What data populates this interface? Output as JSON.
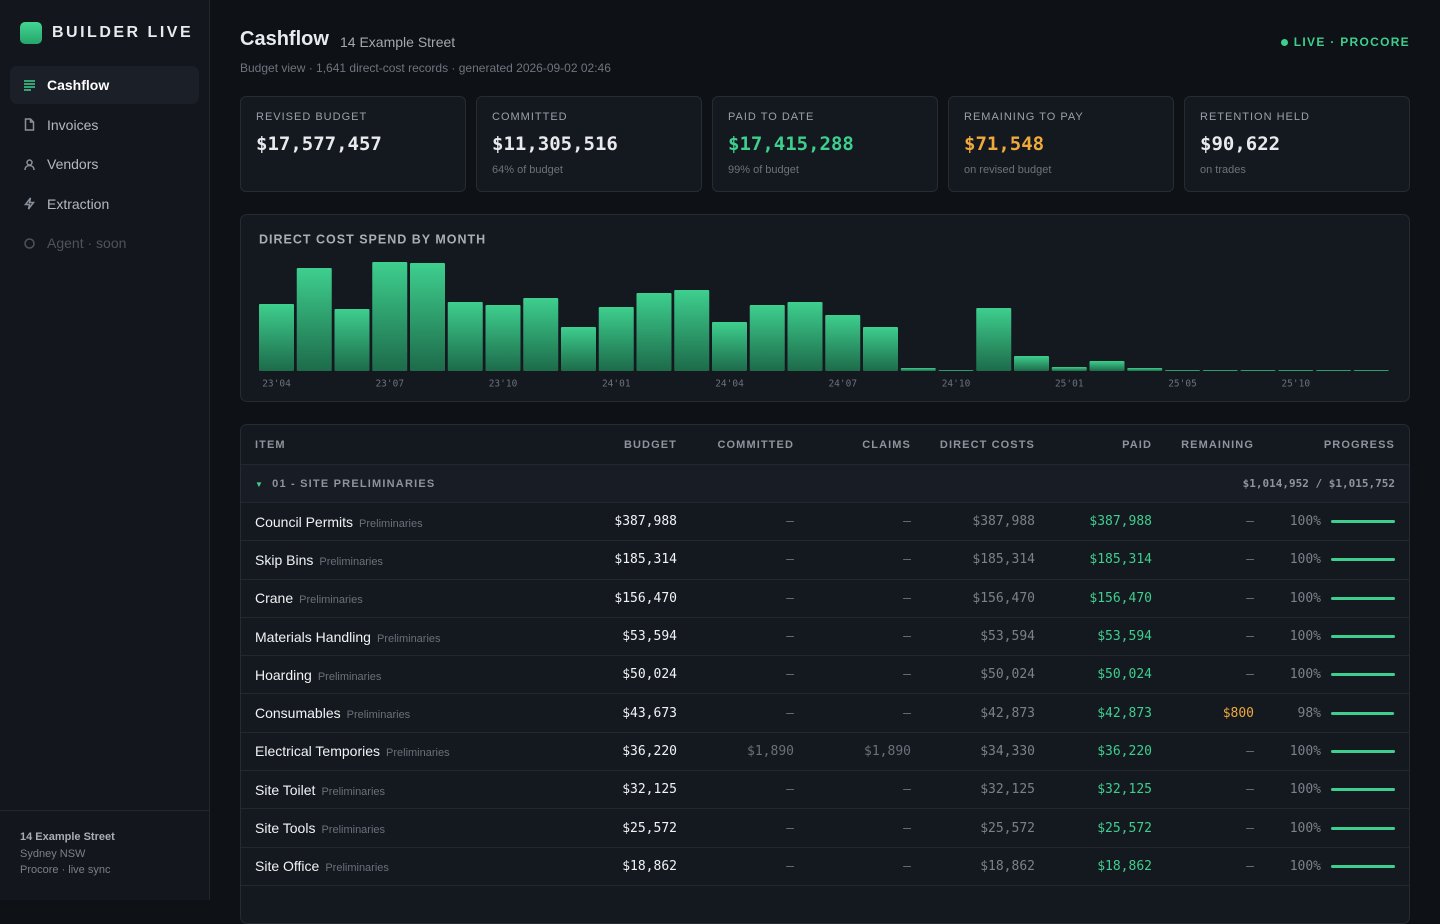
{
  "sidebar": {
    "brand": "BUILDER LIVE",
    "nav": [
      "Cashflow",
      "Invoices",
      "Vendors",
      "Extraction",
      "Agent · soon"
    ],
    "footer": {
      "project": "14 Example Street",
      "location": "Sydney NSW",
      "sync": "Procore · live sync"
    }
  },
  "header": {
    "title": "Cashflow",
    "address": "14 Example Street",
    "meta": "Budget view · 1,641 direct-cost records · generated 2026-09-02 02:46",
    "status": "LIVE · PROCORE"
  },
  "kpis": [
    {
      "label": "REVISED BUDGET",
      "value": "$17,577,457"
    },
    {
      "label": "COMMITTED",
      "value": "$11,305,516",
      "note": "64% of budget"
    },
    {
      "label": "PAID TO DATE",
      "value": "$17,415,288",
      "note": "99% of budget"
    },
    {
      "label": "REMAINING TO PAY",
      "value": "$71,548",
      "note": "on revised budget"
    },
    {
      "label": "RETENTION HELD",
      "value": "$90,622",
      "note": "on trades"
    }
  ],
  "chart_data": {
    "type": "bar",
    "title": "DIRECT COST SPEND BY MONTH",
    "categories": [
      "23'04",
      null,
      null,
      "23'07",
      null,
      null,
      "23'10",
      null,
      null,
      "24'01",
      null,
      null,
      "24'04",
      null,
      null,
      "24'07",
      null,
      null,
      "24'10",
      null,
      null,
      "25'01",
      null,
      null,
      "25'05",
      null,
      null,
      "25'10",
      null,
      null
    ],
    "values": [
      67,
      103,
      62,
      109,
      108,
      69,
      66,
      73,
      44,
      64,
      78,
      81,
      49,
      66,
      69,
      56,
      44,
      3,
      1,
      63,
      15,
      4,
      10,
      3,
      1,
      1,
      1,
      1,
      1,
      1
    ],
    "ylim": [
      0,
      110
    ],
    "color": "#3ecf8e"
  },
  "table": {
    "columns": [
      "ITEM",
      "BUDGET",
      "COMMITTED",
      "CLAIMS",
      "DIRECT COSTS",
      "PAID",
      "REMAINING",
      "PROGRESS"
    ],
    "group": {
      "label": "01 - SITE PRELIMINARIES",
      "total": "$1,014,952 / $1,015,752"
    },
    "rows": [
      {
        "name": "Council Permits",
        "category": "Preliminaries",
        "budget": "$387,988",
        "committed": "–",
        "claims": "–",
        "direct": "$387,988",
        "paid": "$387,988",
        "remaining": "–",
        "progress": 100,
        "progress_label": "100%"
      },
      {
        "name": "Skip Bins",
        "category": "Preliminaries",
        "budget": "$185,314",
        "committed": "–",
        "claims": "–",
        "direct": "$185,314",
        "paid": "$185,314",
        "remaining": "–",
        "progress": 100,
        "progress_label": "100%"
      },
      {
        "name": "Crane",
        "category": "Preliminaries",
        "budget": "$156,470",
        "committed": "–",
        "claims": "–",
        "direct": "$156,470",
        "paid": "$156,470",
        "remaining": "–",
        "progress": 100,
        "progress_label": "100%"
      },
      {
        "name": "Materials Handling",
        "category": "Preliminaries",
        "budget": "$53,594",
        "committed": "–",
        "claims": "–",
        "direct": "$53,594",
        "paid": "$53,594",
        "remaining": "–",
        "progress": 100,
        "progress_label": "100%"
      },
      {
        "name": "Hoarding",
        "category": "Preliminaries",
        "budget": "$50,024",
        "committed": "–",
        "claims": "–",
        "direct": "$50,024",
        "paid": "$50,024",
        "remaining": "–",
        "progress": 100,
        "progress_label": "100%"
      },
      {
        "name": "Consumables",
        "category": "Preliminaries",
        "budget": "$43,673",
        "committed": "–",
        "claims": "–",
        "direct": "$42,873",
        "paid": "$42,873",
        "remaining": "$800",
        "progress": 98,
        "progress_label": "98%"
      },
      {
        "name": "Electrical Tempories",
        "category": "Preliminaries",
        "budget": "$36,220",
        "committed": "$1,890",
        "claims": "$1,890",
        "direct": "$34,330",
        "paid": "$36,220",
        "remaining": "–",
        "progress": 100,
        "progress_label": "100%"
      },
      {
        "name": "Site Toilet",
        "category": "Preliminaries",
        "budget": "$32,125",
        "committed": "–",
        "claims": "–",
        "direct": "$32,125",
        "paid": "$32,125",
        "remaining": "–",
        "progress": 100,
        "progress_label": "100%"
      },
      {
        "name": "Site Tools",
        "category": "Preliminaries",
        "budget": "$25,572",
        "committed": "–",
        "claims": "–",
        "direct": "$25,572",
        "paid": "$25,572",
        "remaining": "–",
        "progress": 100,
        "progress_label": "100%"
      },
      {
        "name": "Site Office",
        "category": "Preliminaries",
        "budget": "$18,862",
        "committed": "–",
        "claims": "–",
        "direct": "$18,862",
        "paid": "$18,862",
        "remaining": "–",
        "progress": 100,
        "progress_label": "100%"
      }
    ]
  }
}
